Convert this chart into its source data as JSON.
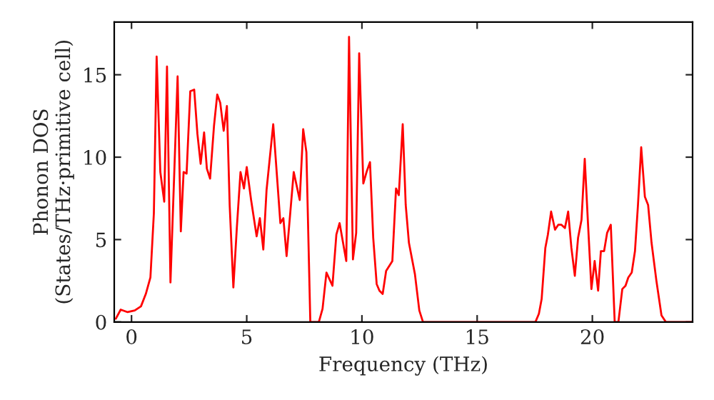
{
  "chart_data": {
    "type": "line",
    "xlabel": "Frequency (THz)",
    "ylabel": "Phonon DOS\n(States/THz·primitive cell)",
    "xlim": [
      -0.75,
      24.35
    ],
    "ylim": [
      0,
      18.2
    ],
    "xticks": [
      0,
      5,
      10,
      15,
      20
    ],
    "yticks": [
      0,
      5,
      10,
      15
    ],
    "grid": false,
    "series": [
      {
        "color": "#ff0000",
        "x": [
          -0.68,
          -0.47,
          -0.17,
          0.14,
          0.41,
          0.62,
          0.82,
          0.97,
          1.09,
          1.25,
          1.42,
          1.54,
          1.69,
          2.0,
          2.14,
          2.26,
          2.39,
          2.55,
          2.72,
          2.86,
          3.0,
          3.15,
          3.27,
          3.41,
          3.58,
          3.72,
          3.85,
          4.0,
          4.14,
          4.26,
          4.42,
          4.57,
          4.73,
          4.88,
          5.0,
          5.19,
          5.43,
          5.57,
          5.72,
          5.86,
          6.15,
          6.46,
          6.59,
          6.73,
          7.04,
          7.3,
          7.45,
          7.59,
          7.76,
          8.13,
          8.29,
          8.46,
          8.72,
          8.89,
          9.03,
          9.32,
          9.44,
          9.61,
          9.75,
          9.88,
          10.06,
          10.2,
          10.35,
          10.49,
          10.64,
          10.76,
          10.9,
          11.05,
          11.32,
          11.48,
          11.6,
          11.77,
          11.9,
          12.04,
          12.3,
          12.49,
          12.65,
          17.53,
          17.68,
          17.8,
          17.96,
          18.07,
          18.21,
          18.38,
          18.52,
          18.66,
          18.81,
          18.95,
          19.09,
          19.24,
          19.38,
          19.53,
          19.67,
          19.81,
          19.96,
          20.1,
          20.25,
          20.37,
          20.51,
          20.64,
          20.8,
          20.97,
          21.13,
          21.3,
          21.44,
          21.56,
          21.71,
          21.85,
          21.98,
          22.12,
          22.28,
          22.42,
          22.57,
          22.78,
          23.0,
          23.19,
          24.35
        ],
        "values": [
          0.2,
          0.75,
          0.6,
          0.7,
          0.95,
          1.7,
          2.7,
          6.6,
          16.1,
          9.1,
          7.3,
          15.5,
          2.4,
          14.9,
          5.5,
          9.1,
          9.0,
          14.0,
          14.1,
          11.4,
          9.6,
          11.5,
          9.3,
          8.7,
          11.9,
          13.8,
          13.3,
          11.6,
          13.1,
          7.1,
          2.1,
          5.7,
          9.1,
          8.1,
          9.4,
          7.4,
          5.2,
          6.3,
          4.4,
          8.0,
          12.0,
          6.0,
          6.3,
          4.0,
          9.1,
          7.4,
          11.7,
          10.3,
          0,
          0,
          0.8,
          3.0,
          2.2,
          5.3,
          6.0,
          3.7,
          17.3,
          3.8,
          5.4,
          16.3,
          8.4,
          9.1,
          9.7,
          5.1,
          2.3,
          1.9,
          1.7,
          3.1,
          3.7,
          8.1,
          7.7,
          12.0,
          7.1,
          4.8,
          2.9,
          0.7,
          0,
          0,
          0.5,
          1.4,
          4.5,
          5.3,
          6.7,
          5.6,
          5.9,
          5.9,
          5.7,
          6.7,
          4.5,
          2.8,
          5.1,
          6.2,
          9.9,
          6.0,
          2.0,
          3.7,
          1.9,
          4.3,
          4.3,
          5.4,
          5.9,
          0,
          0,
          2.0,
          2.2,
          2.7,
          3.0,
          4.3,
          7.1,
          10.6,
          7.6,
          7.1,
          4.8,
          2.5,
          0.4,
          0,
          0
        ]
      }
    ]
  }
}
